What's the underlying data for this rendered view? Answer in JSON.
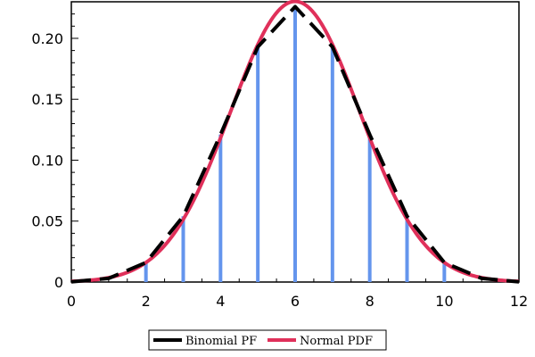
{
  "chart_data": {
    "type": "line",
    "title": "",
    "xlabel": "",
    "ylabel": "",
    "xlim": [
      0,
      12
    ],
    "ylim": [
      0,
      0.23
    ],
    "x_ticks": [
      0,
      2,
      4,
      6,
      8,
      10,
      12
    ],
    "y_ticks": [
      0,
      0.05,
      0.1,
      0.15,
      0.2
    ],
    "x_tick_labels": [
      "0",
      "2",
      "4",
      "6",
      "8",
      "10",
      "12"
    ],
    "y_tick_labels": [
      "0",
      "0.05",
      "0.10",
      "0.15",
      "0.20"
    ],
    "grid": false,
    "legend_position": "bottom",
    "stems": {
      "color": "#6495ED",
      "x": [
        2,
        3,
        4,
        5,
        6,
        7,
        8,
        9,
        10
      ],
      "y": [
        0.016,
        0.054,
        0.121,
        0.193,
        0.226,
        0.193,
        0.121,
        0.054,
        0.016
      ]
    },
    "series": [
      {
        "name": "Binomial PF",
        "style": "dashed",
        "color": "#000000",
        "x": [
          0,
          1,
          2,
          3,
          4,
          5,
          6,
          7,
          8,
          9,
          10,
          11,
          12
        ],
        "y": [
          0.0002,
          0.003,
          0.016,
          0.054,
          0.121,
          0.193,
          0.226,
          0.193,
          0.121,
          0.054,
          0.016,
          0.003,
          0.0002
        ]
      },
      {
        "name": "Normal PDF",
        "style": "solid",
        "color": "#E0305A",
        "mean": 6,
        "sd": 1.732
      }
    ]
  }
}
